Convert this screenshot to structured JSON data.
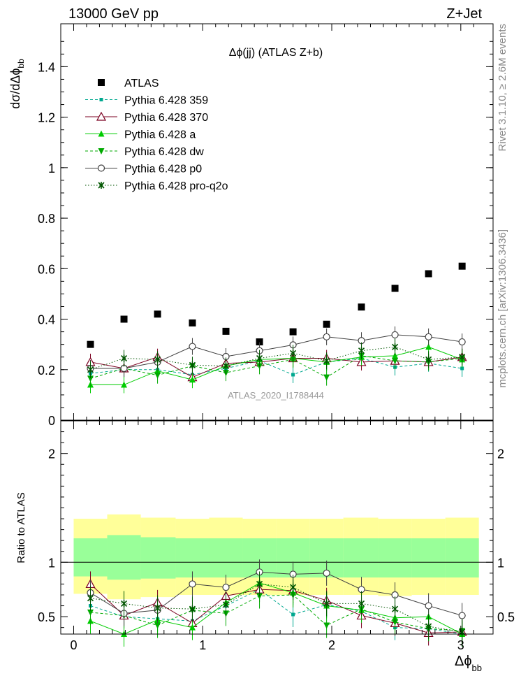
{
  "header": {
    "left": "13000 GeV pp",
    "right": "Z+Jet"
  },
  "side_labels": {
    "rivet": "Rivet 3.1.10, ≥ 2.6M events",
    "site": "mcplots.cern.ch [arXiv:1306.3436]"
  },
  "chart_data": [
    {
      "type": "scatter",
      "panel": "main",
      "title": "Δϕ(jj) (ATLAS Z+b)",
      "ylabel": "dσ/dΔϕ_bb",
      "watermark": "ATLAS_2020_I1788444",
      "xlim": [
        -0.1,
        3.25
      ],
      "ylim": [
        0,
        1.57
      ],
      "yticks": [
        0,
        0.2,
        0.4,
        0.6,
        0.8,
        1,
        1.2,
        1.4
      ],
      "ytick_labels": [
        "0",
        "0.2",
        "0.4",
        "0.6",
        "0.8",
        "1",
        "1.2",
        "1.4"
      ],
      "legend_position": "top-left",
      "x": [
        0.13,
        0.39,
        0.65,
        0.92,
        1.18,
        1.44,
        1.7,
        1.96,
        2.23,
        2.49,
        2.75,
        3.01
      ],
      "series": [
        {
          "name": "ATLAS",
          "color": "#000000",
          "marker": "square",
          "line": "none",
          "values": [
            0.3,
            0.4,
            0.42,
            0.385,
            0.352,
            0.31,
            0.35,
            0.38,
            0.448,
            0.522,
            0.58,
            0.61
          ]
        },
        {
          "name": "Pythia 6.428 359",
          "color": "#00a88f",
          "marker": "small-square",
          "line": "dashed",
          "values": [
            0.185,
            0.2,
            0.2,
            0.18,
            0.205,
            0.235,
            0.18,
            0.23,
            0.245,
            0.21,
            0.225,
            0.205
          ]
        },
        {
          "name": "Pythia 6.428 370",
          "color": "#7b0020",
          "marker": "open-triangle",
          "line": "solid",
          "values": [
            0.23,
            0.205,
            0.25,
            0.17,
            0.225,
            0.23,
            0.245,
            0.245,
            0.23,
            0.235,
            0.23,
            0.25
          ]
        },
        {
          "name": "Pythia 6.428 a",
          "color": "#00cc00",
          "marker": "triangle-up",
          "line": "solid",
          "values": [
            0.14,
            0.14,
            0.195,
            0.16,
            0.215,
            0.24,
            0.245,
            0.23,
            0.25,
            0.255,
            0.29,
            0.24
          ]
        },
        {
          "name": "Pythia 6.428 dw",
          "color": "#00aa00",
          "marker": "triangle-down",
          "line": "dashed",
          "values": [
            0.165,
            0.205,
            0.178,
            0.215,
            0.188,
            0.215,
            0.24,
            0.17,
            0.255,
            0.235,
            0.23,
            0.245
          ]
        },
        {
          "name": "Pythia 6.428 p0",
          "color": "#404040",
          "marker": "open-circle",
          "line": "solid",
          "values": [
            0.205,
            0.205,
            0.23,
            0.292,
            0.252,
            0.275,
            0.298,
            0.33,
            0.315,
            0.338,
            0.33,
            0.31
          ]
        },
        {
          "name": "Pythia 6.428 pro-q2o",
          "color": "#005500",
          "marker": "star",
          "line": "dotted",
          "values": [
            0.2,
            0.245,
            0.24,
            0.218,
            0.215,
            0.245,
            0.265,
            0.235,
            0.275,
            0.29,
            0.24,
            0.25
          ]
        }
      ]
    },
    {
      "type": "scatter",
      "panel": "ratio",
      "ylabel": "Ratio to ATLAS",
      "xlabel": "Δϕ_bb",
      "xlim": [
        -0.1,
        3.25
      ],
      "ylim": [
        0.34,
        2.3
      ],
      "yticks": [
        0.5,
        1,
        2
      ],
      "ytick_labels": [
        "0.5",
        "1",
        "2"
      ],
      "xticks": [
        0,
        1,
        2,
        3
      ],
      "xtick_labels": [
        "0",
        "1",
        "2",
        "3"
      ],
      "bands": {
        "x_edges": [
          0,
          0.26,
          0.52,
          0.79,
          1.05,
          1.31,
          1.57,
          1.83,
          2.09,
          2.36,
          2.62,
          2.88,
          3.14
        ],
        "outer_low": [
          0.71,
          0.66,
          0.68,
          0.7,
          0.7,
          0.7,
          0.7,
          0.7,
          0.7,
          0.69,
          0.7,
          0.7
        ],
        "outer_high": [
          1.4,
          1.44,
          1.41,
          1.4,
          1.41,
          1.4,
          1.4,
          1.4,
          1.41,
          1.4,
          1.4,
          1.41
        ],
        "inner_low": [
          0.87,
          0.84,
          0.85,
          0.86,
          0.86,
          0.86,
          0.86,
          0.86,
          0.86,
          0.86,
          0.86,
          0.86
        ],
        "inner_high": [
          1.22,
          1.25,
          1.23,
          1.22,
          1.22,
          1.22,
          1.22,
          1.22,
          1.22,
          1.22,
          1.22,
          1.22
        ],
        "outer_color": "#ffff99",
        "inner_color": "#99ff99"
      },
      "x": [
        0.13,
        0.39,
        0.65,
        0.92,
        1.18,
        1.44,
        1.7,
        1.96,
        2.23,
        2.49,
        2.75,
        3.01
      ],
      "series": [
        {
          "name": "Pythia 6.428 359",
          "color": "#00a88f",
          "marker": "small-square",
          "line": "dashed",
          "values": [
            0.6,
            0.5,
            0.48,
            0.46,
            0.6,
            0.75,
            0.52,
            0.61,
            0.55,
            0.4,
            0.39,
            0.34
          ]
        },
        {
          "name": "Pythia 6.428 370",
          "color": "#7b0020",
          "marker": "open-triangle",
          "line": "solid",
          "values": [
            0.8,
            0.51,
            0.63,
            0.44,
            0.69,
            0.75,
            0.74,
            0.65,
            0.51,
            0.44,
            0.35,
            0.36
          ]
        },
        {
          "name": "Pythia 6.428 a",
          "color": "#00cc00",
          "marker": "triangle-up",
          "line": "solid",
          "values": [
            0.46,
            0.34,
            0.47,
            0.4,
            0.63,
            0.81,
            0.72,
            0.6,
            0.56,
            0.49,
            0.5,
            0.34
          ]
        },
        {
          "name": "Pythia 6.428 dw",
          "color": "#00aa00",
          "marker": "triangle-down",
          "line": "dashed",
          "values": [
            0.54,
            0.51,
            0.42,
            0.56,
            0.53,
            0.69,
            0.7,
            0.42,
            0.57,
            0.45,
            0.39,
            0.37
          ]
        },
        {
          "name": "Pythia 6.428 p0",
          "color": "#404040",
          "marker": "open-circle",
          "line": "solid",
          "values": [
            0.72,
            0.53,
            0.56,
            0.8,
            0.77,
            0.91,
            0.89,
            0.9,
            0.75,
            0.7,
            0.6,
            0.51
          ]
        },
        {
          "name": "Pythia 6.428 pro-q2o",
          "color": "#005500",
          "marker": "star",
          "line": "dotted",
          "values": [
            0.67,
            0.62,
            0.58,
            0.57,
            0.61,
            0.8,
            0.77,
            0.62,
            0.62,
            0.57,
            0.41,
            0.36
          ]
        }
      ]
    }
  ]
}
